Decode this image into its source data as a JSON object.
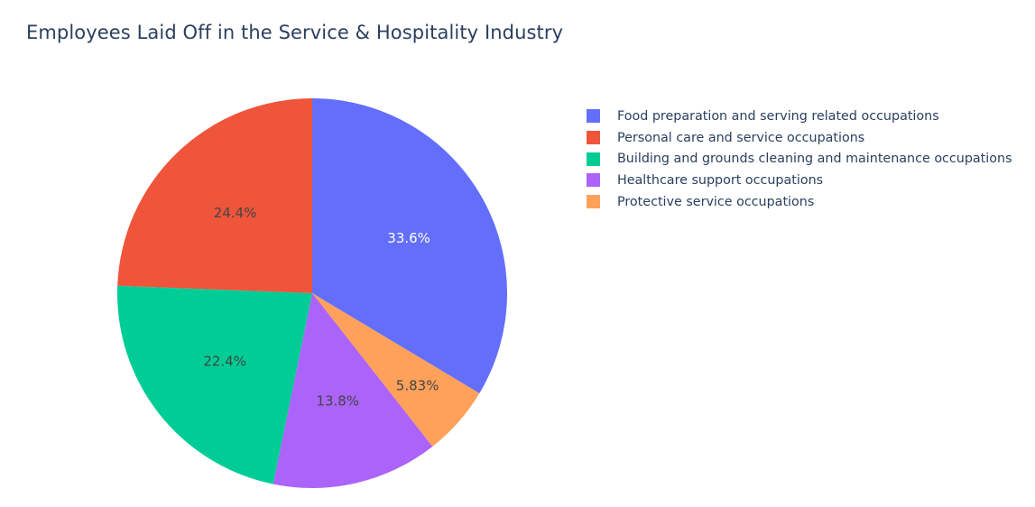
{
  "chart_data": {
    "type": "pie",
    "title": "Employees Laid Off in the Service & Hospitality Industry",
    "slices": [
      {
        "label": "Food preparation and serving related occupations",
        "value": 33.6,
        "display": "33.6%",
        "color": "#636efa",
        "label_color": "#ffffff"
      },
      {
        "label": "Protective service occupations",
        "value": 5.83,
        "display": "5.83%",
        "color": "#ffa15a",
        "label_color": "#444444"
      },
      {
        "label": "Healthcare support occupations",
        "value": 13.8,
        "display": "13.8%",
        "color": "#ab63fa",
        "label_color": "#444444"
      },
      {
        "label": "Building and grounds cleaning and maintenance occupations",
        "value": 22.4,
        "display": "22.4%",
        "color": "#00cc96",
        "label_color": "#444444"
      },
      {
        "label": "Personal care and service occupations",
        "value": 24.4,
        "display": "24.4%",
        "color": "#ef553b",
        "label_color": "#444444"
      }
    ],
    "legend": [
      {
        "label": "Food preparation and serving related occupations",
        "color": "#636efa"
      },
      {
        "label": "Personal care and service occupations",
        "color": "#ef553b"
      },
      {
        "label": "Building and grounds cleaning and maintenance occupations",
        "color": "#00cc96"
      },
      {
        "label": "Healthcare support occupations",
        "color": "#ab63fa"
      },
      {
        "label": "Protective service occupations",
        "color": "#ffa15a"
      }
    ],
    "legend_position": "top-right",
    "direction": "clockwise",
    "start": "top"
  }
}
